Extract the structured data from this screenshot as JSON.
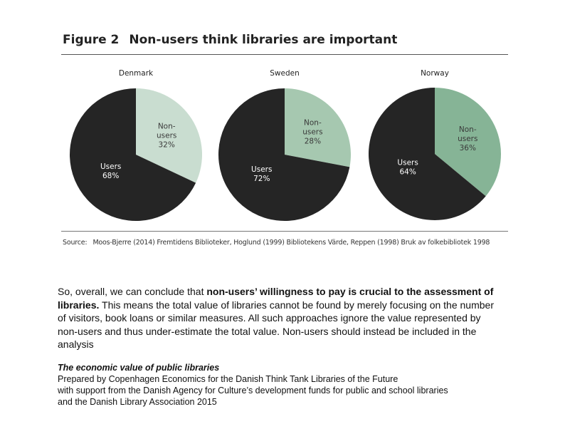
{
  "figure": {
    "number": "Figure 2",
    "title": "Non-users think libraries are important"
  },
  "chart_data": [
    {
      "type": "pie",
      "title": "Denmark",
      "slices": [
        {
          "label_lines": [
            "Non-",
            "users"
          ],
          "value_label": "32%",
          "value": 32,
          "color": "#c9ddd0"
        },
        {
          "label_lines": [
            "Users"
          ],
          "value_label": "68%",
          "value": 68,
          "color": "#252525"
        }
      ]
    },
    {
      "type": "pie",
      "title": "Sweden",
      "slices": [
        {
          "label_lines": [
            "Non-",
            "users"
          ],
          "value_label": "28%",
          "value": 28,
          "color": "#a6c8b0"
        },
        {
          "label_lines": [
            "Users"
          ],
          "value_label": "72%",
          "value": 72,
          "color": "#252525"
        }
      ]
    },
    {
      "type": "pie",
      "title": "Norway",
      "slices": [
        {
          "label_lines": [
            "Non-",
            "users"
          ],
          "value_label": "36%",
          "value": 36,
          "color": "#86b496"
        },
        {
          "label_lines": [
            "Users"
          ],
          "value_label": "64%",
          "value": 64,
          "color": "#252525"
        }
      ]
    }
  ],
  "source": {
    "label": "Source:",
    "text": "Moos-Bjerre (2014) Fremtidens Biblioteker, Hoglund (1999) Bibliotekens Värde, Reppen (1998) Bruk av folkebibliotek 1998"
  },
  "paragraph": {
    "intro": "So, overall, we can conclude that ",
    "bold": "non-users’ willingness to pay is crucial to the assessment of libraries.",
    "rest": " This means the total value of libraries cannot be found by merely focusing on the number of visitors, book loans or similar measures. All such approaches ignore the value represented by non-users and thus under-estimate the total value. Non-users should instead be included in the analysis"
  },
  "credit": {
    "title": "The economic value of public libraries",
    "line1": "Prepared by Copenhagen Economics for the Danish Think Tank Libraries of the Future",
    "line2": "with support from the Danish Agency for Culture’s development funds for public and school libraries",
    "line3": "and the Danish Library Association 2015"
  }
}
